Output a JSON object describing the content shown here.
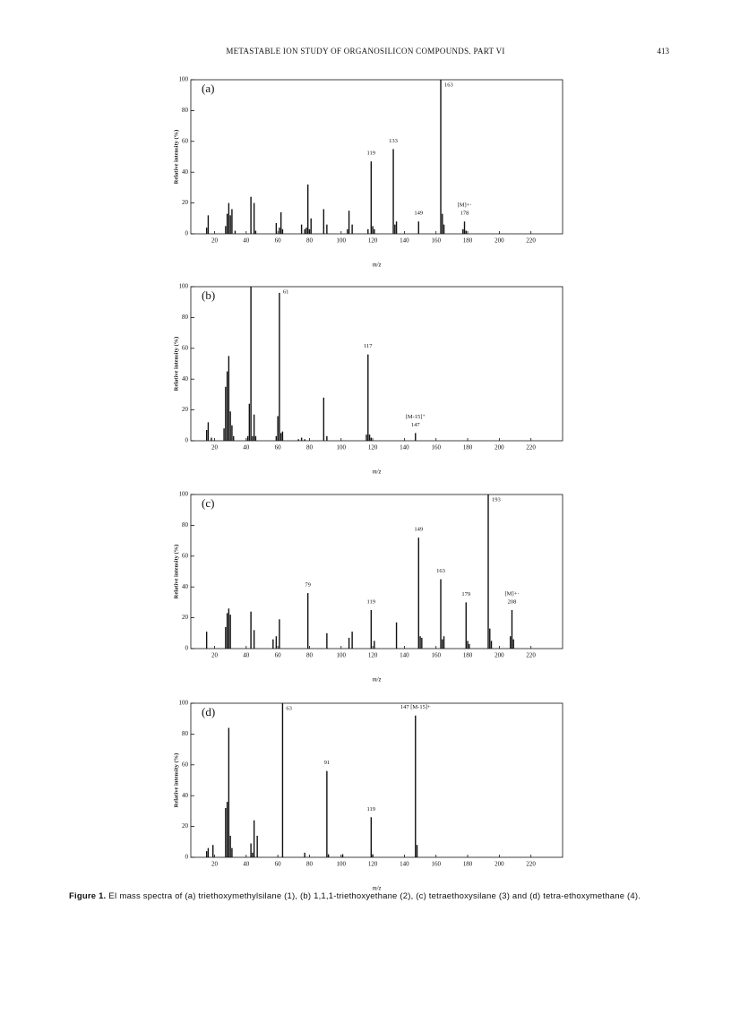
{
  "header": {
    "title": "METASTABLE ION STUDY OF ORGANOSILICON COMPOUNDS. PART VI",
    "page": "413"
  },
  "caption": {
    "label": "Figure 1.",
    "text": "EI mass spectra of (a) triethoxymethylsilane (1), (b) 1,1,1-triethoxyethane (2), (c) tetraethoxysilane (3) and (d) tetra-ethoxymethane (4)."
  },
  "chart_data": [
    {
      "type": "bar",
      "panel": "(a)",
      "x_label": "m/z",
      "y_label": "Relative intensity (%)",
      "color": "#111111",
      "x": [
        15,
        16,
        27,
        28,
        29,
        30,
        31,
        33,
        43,
        45,
        46,
        59,
        61,
        62,
        63,
        75,
        77,
        78,
        79,
        80,
        81,
        89,
        91,
        104,
        105,
        107,
        117,
        119,
        120,
        121,
        133,
        134,
        135,
        149,
        163,
        164,
        165,
        177,
        178,
        179
      ],
      "values": [
        4,
        12,
        5,
        13,
        20,
        12,
        16,
        2,
        24,
        20,
        2,
        7,
        4,
        14,
        3,
        6,
        3,
        4,
        32,
        3,
        10,
        16,
        6,
        3,
        15,
        6,
        3,
        47,
        5,
        3,
        55,
        6,
        8,
        8,
        100,
        13,
        6,
        3,
        8,
        2
      ],
      "xlim": [
        5,
        240
      ],
      "ylim": [
        0,
        100
      ],
      "xticks": [
        20,
        40,
        60,
        80,
        100,
        120,
        140,
        160,
        180,
        200,
        220
      ],
      "yticks": [
        0,
        20,
        40,
        60,
        80,
        100
      ],
      "annotations": [
        {
          "text": [
            "163"
          ],
          "x": 163
        },
        {
          "text": [
            "133"
          ],
          "x": 133
        },
        {
          "text": [
            "119"
          ],
          "x": 119
        },
        {
          "text": [
            "149"
          ],
          "x": 149
        },
        {
          "text": [
            "[M]+·",
            "178"
          ],
          "x": 178
        }
      ]
    },
    {
      "type": "bar",
      "panel": "(b)",
      "x_label": "m/z",
      "y_label": "Relative intensity (%)",
      "color": "#111111",
      "x": [
        15,
        16,
        18,
        26,
        27,
        28,
        29,
        30,
        31,
        32,
        41,
        42,
        43,
        44,
        45,
        46,
        59,
        60,
        61,
        62,
        63,
        73,
        75,
        77,
        89,
        91,
        116,
        117,
        118,
        119,
        147
      ],
      "values": [
        7,
        12,
        2,
        8,
        35,
        45,
        55,
        19,
        10,
        3,
        3,
        24,
        100,
        3,
        17,
        3,
        3,
        16,
        96,
        5,
        6,
        1,
        2,
        1,
        28,
        3,
        4,
        56,
        4,
        2,
        5
      ],
      "xlim": [
        5,
        240
      ],
      "ylim": [
        0,
        100
      ],
      "xticks": [
        20,
        40,
        60,
        80,
        100,
        120,
        140,
        160,
        180,
        200,
        220
      ],
      "yticks": [
        0,
        20,
        40,
        60,
        80,
        100
      ],
      "annotations": [
        {
          "text": [
            "61"
          ],
          "x": 61
        },
        {
          "text": [
            "117"
          ],
          "x": 117
        },
        {
          "text": [
            "[M-15]⁺",
            "147"
          ],
          "x": 147
        }
      ]
    },
    {
      "type": "bar",
      "panel": "(c)",
      "x_label": "m/z",
      "y_label": "Relative intensity (%)",
      "color": "#111111",
      "x": [
        15,
        27,
        28,
        29,
        30,
        43,
        45,
        57,
        59,
        61,
        79,
        91,
        105,
        107,
        119,
        121,
        135,
        149,
        150,
        151,
        163,
        164,
        165,
        179,
        180,
        181,
        193,
        194,
        195,
        207,
        208,
        209
      ],
      "values": [
        11,
        14,
        23,
        26,
        22,
        24,
        12,
        6,
        8,
        19,
        36,
        10,
        7,
        11,
        25,
        5,
        17,
        72,
        8,
        7,
        45,
        6,
        8,
        30,
        5,
        3,
        100,
        13,
        5,
        8,
        25,
        6
      ],
      "xlim": [
        5,
        240
      ],
      "ylim": [
        0,
        100
      ],
      "xticks": [
        20,
        40,
        60,
        80,
        100,
        120,
        140,
        160,
        180,
        200,
        220
      ],
      "yticks": [
        0,
        20,
        40,
        60,
        80,
        100
      ],
      "annotations": [
        {
          "text": [
            "193"
          ],
          "x": 193
        },
        {
          "text": [
            "149"
          ],
          "x": 149
        },
        {
          "text": [
            "163"
          ],
          "x": 163
        },
        {
          "text": [
            "179"
          ],
          "x": 179
        },
        {
          "text": [
            "79"
          ],
          "x": 79
        },
        {
          "text": [
            "119"
          ],
          "x": 119
        },
        {
          "text": [
            "[M]+·",
            "208"
          ],
          "x": 208
        }
      ]
    },
    {
      "type": "bar",
      "panel": "(d)",
      "x_label": "m/z",
      "y_label": "Relative intensity (%)",
      "color": "#111111",
      "x": [
        15,
        16,
        19,
        27,
        28,
        29,
        30,
        31,
        43,
        44,
        45,
        47,
        63,
        77,
        91,
        92,
        101,
        119,
        120,
        147,
        148
      ],
      "values": [
        4,
        6,
        8,
        32,
        36,
        84,
        14,
        6,
        9,
        3,
        24,
        14,
        100,
        3,
        56,
        2,
        2,
        26,
        2,
        92,
        8
      ],
      "xlim": [
        5,
        240
      ],
      "ylim": [
        0,
        100
      ],
      "xticks": [
        20,
        40,
        60,
        80,
        100,
        120,
        140,
        160,
        180,
        200,
        220
      ],
      "yticks": [
        0,
        20,
        40,
        60,
        80,
        100
      ],
      "annotations": [
        {
          "text": [
            "63"
          ],
          "x": 63
        },
        {
          "text": [
            "91"
          ],
          "x": 91
        },
        {
          "text": [
            "119"
          ],
          "x": 119
        },
        {
          "text": [
            "147 [M-15]+"
          ],
          "x": 147
        }
      ]
    }
  ]
}
